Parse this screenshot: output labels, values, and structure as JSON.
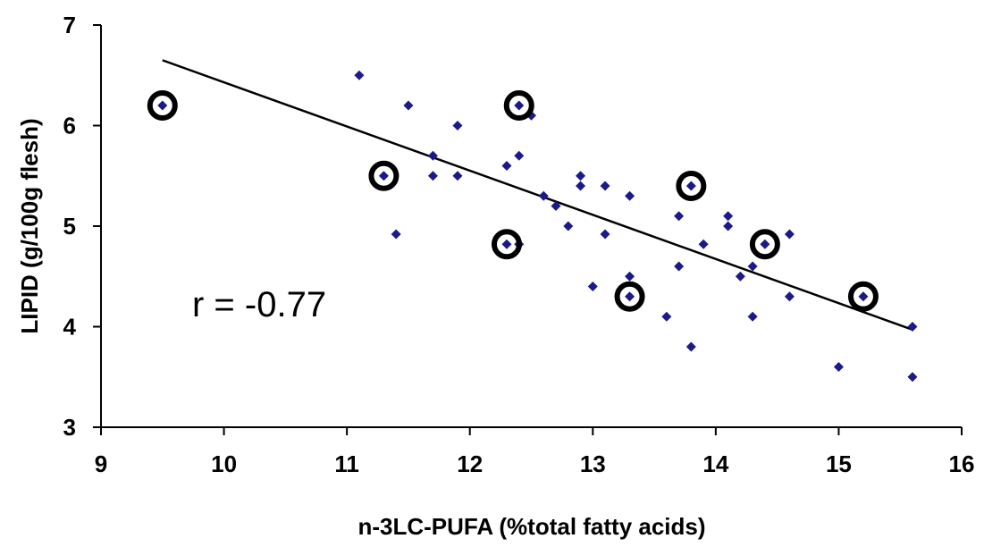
{
  "chart_data": {
    "type": "scatter",
    "xlabel": "n-3LC-PUFA (%total fatty acids)",
    "ylabel": "LIPID (g/100g flesh)",
    "xlim": [
      9,
      16
    ],
    "ylim": [
      3,
      7
    ],
    "x_ticks": [
      "9",
      "10",
      "11",
      "12",
      "13",
      "14",
      "15",
      "16"
    ],
    "y_ticks": [
      "3",
      "4",
      "5",
      "6",
      "7"
    ],
    "annotation": "r = -0.77",
    "grid": false,
    "series": [
      {
        "marker_color": "#1a1a8c",
        "points": [
          [
            9.5,
            6.2
          ],
          [
            11.1,
            6.5
          ],
          [
            11.3,
            5.5
          ],
          [
            11.4,
            4.92
          ],
          [
            11.5,
            6.2
          ],
          [
            11.7,
            5.7
          ],
          [
            11.7,
            5.5
          ],
          [
            11.9,
            6.0
          ],
          [
            11.9,
            5.5
          ],
          [
            12.3,
            5.6
          ],
          [
            12.3,
            4.82
          ],
          [
            12.4,
            6.2
          ],
          [
            12.4,
            5.7
          ],
          [
            12.4,
            4.82
          ],
          [
            12.5,
            6.1
          ],
          [
            12.6,
            5.3
          ],
          [
            12.7,
            5.2
          ],
          [
            12.8,
            5.0
          ],
          [
            12.9,
            5.5
          ],
          [
            12.9,
            5.4
          ],
          [
            13.0,
            4.4
          ],
          [
            13.1,
            5.4
          ],
          [
            13.1,
            4.92
          ],
          [
            13.3,
            5.3
          ],
          [
            13.3,
            4.5
          ],
          [
            13.3,
            4.3
          ],
          [
            13.6,
            4.1
          ],
          [
            13.7,
            5.1
          ],
          [
            13.7,
            4.6
          ],
          [
            13.8,
            5.4
          ],
          [
            13.8,
            3.8
          ],
          [
            13.9,
            4.82
          ],
          [
            14.1,
            5.1
          ],
          [
            14.1,
            5.0
          ],
          [
            14.2,
            4.5
          ],
          [
            14.3,
            4.6
          ],
          [
            14.3,
            4.1
          ],
          [
            14.4,
            4.82
          ],
          [
            14.6,
            4.92
          ],
          [
            14.6,
            4.3
          ],
          [
            15.0,
            3.6
          ],
          [
            15.2,
            4.3
          ],
          [
            15.6,
            4.0
          ],
          [
            15.6,
            3.5
          ]
        ]
      }
    ],
    "highlighted_points": [
      [
        9.5,
        6.2
      ],
      [
        11.3,
        5.5
      ],
      [
        12.3,
        4.82
      ],
      [
        12.4,
        6.2
      ],
      [
        13.3,
        4.3
      ],
      [
        13.8,
        5.4
      ],
      [
        14.4,
        4.82
      ],
      [
        15.2,
        4.3
      ]
    ],
    "trendline": {
      "x": [
        9.5,
        15.6
      ],
      "y": [
        6.65,
        3.97
      ]
    }
  }
}
